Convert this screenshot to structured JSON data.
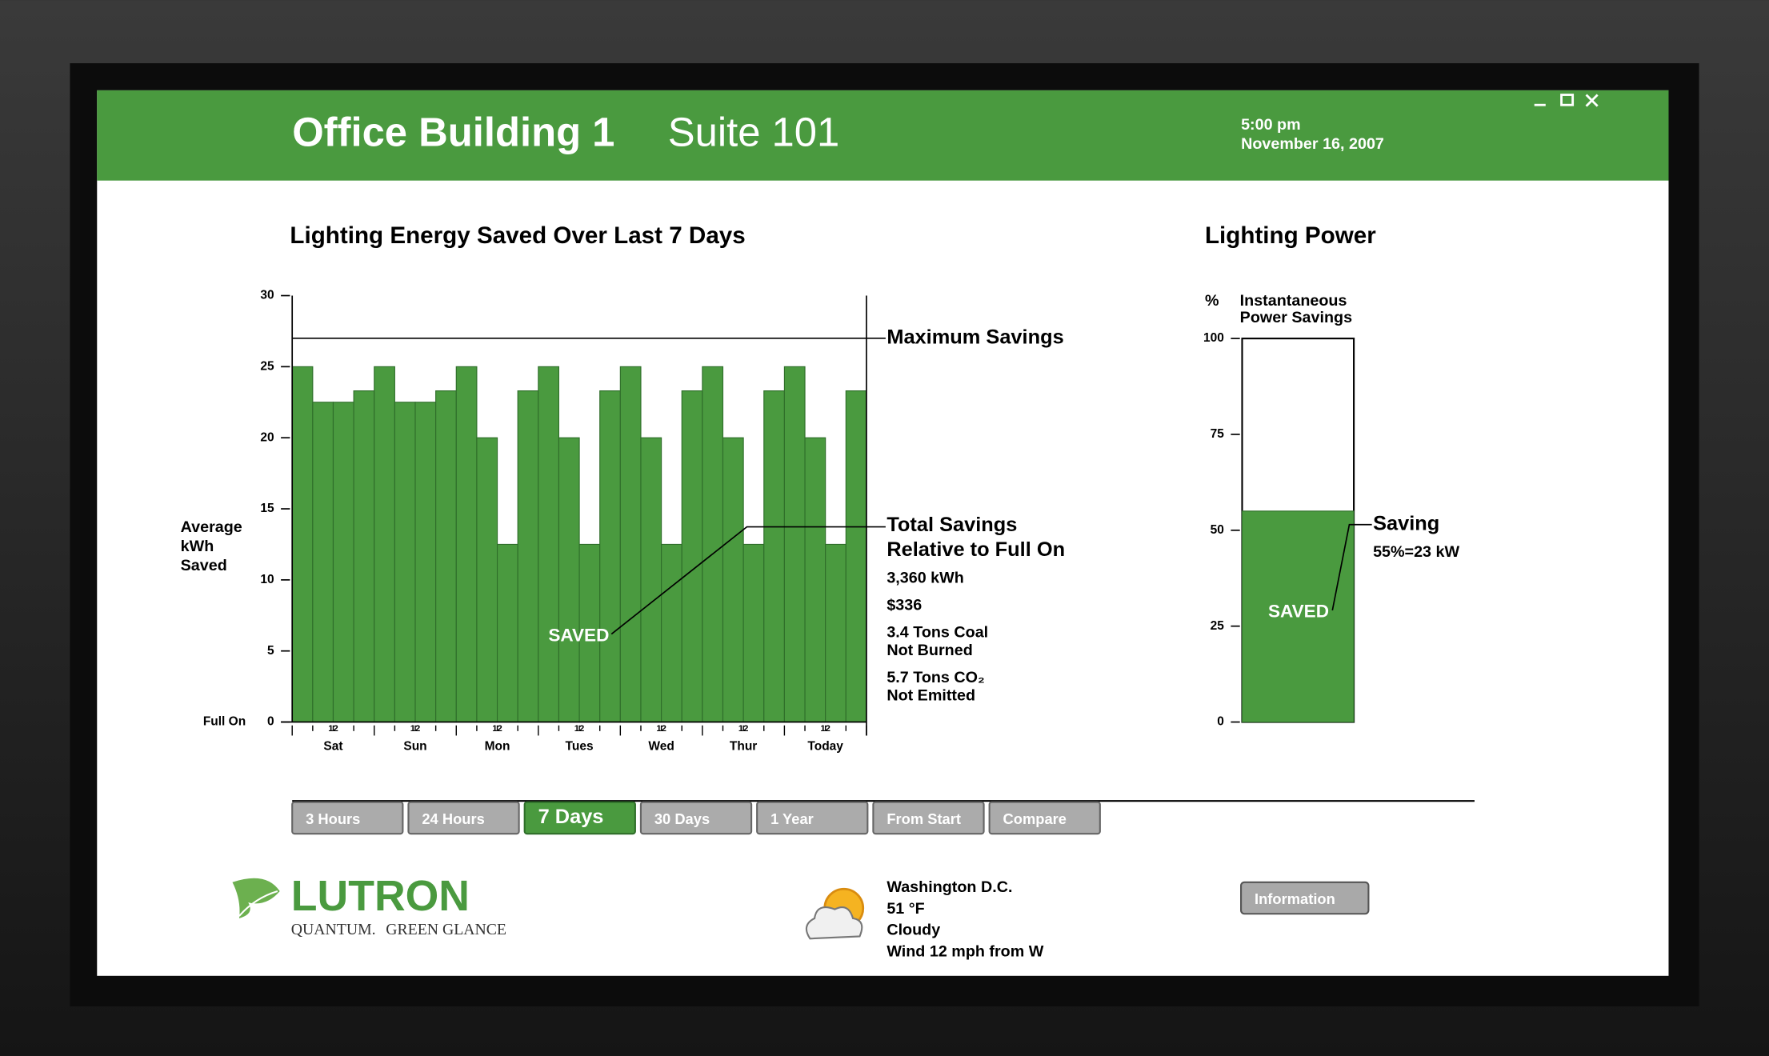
{
  "header": {
    "title": "Office Building 1",
    "subtitle": "Suite 101",
    "time": "5:00 pm",
    "date": "November 16, 2007"
  },
  "chart_data": [
    {
      "type": "bar",
      "title": "Lighting Energy Saved Over Last 7 Days",
      "y_label": [
        "Average",
        "kWh",
        "Saved"
      ],
      "categories": [
        null,
        null,
        null,
        null,
        null,
        null,
        null,
        null,
        null,
        null,
        null,
        null,
        null,
        null,
        null,
        null,
        null,
        null,
        null,
        null,
        null,
        null,
        null,
        null,
        null,
        null,
        null,
        null
      ],
      "values": [
        25,
        22.5,
        22.5,
        23.3,
        25,
        22.5,
        22.5,
        23.3,
        25,
        20,
        12.5,
        23.3,
        25,
        20,
        12.5,
        23.3,
        25,
        20,
        12.5,
        23.3,
        25,
        20,
        12.5,
        23.3,
        25,
        20,
        12.5,
        23.3
      ],
      "color": "#4a9a3f",
      "ylim": [
        0,
        30
      ],
      "yticks": [
        0,
        5,
        10,
        15,
        20,
        25,
        30
      ],
      "zero_label": "Full On",
      "day_labels": [
        "Sat",
        "Sun",
        "Mon",
        "Tues",
        "Wed",
        "Thur",
        "Today"
      ],
      "noon_label": "12",
      "max_savings": 27,
      "max_savings_label": "Maximum Savings",
      "bar_label": "SAVED",
      "totals_title": [
        "Total Savings",
        "Relative to Full On"
      ],
      "totals": [
        [
          "3,360 kWh"
        ],
        [
          "$336"
        ],
        [
          "3.4 Tons Coal",
          "Not Burned"
        ],
        [
          "5.7 Tons CO₂",
          "Not Emitted"
        ]
      ]
    },
    {
      "type": "bar",
      "title": "Lighting Power",
      "y_label": "%",
      "series_label": [
        "Instantaneous",
        "Power Savings"
      ],
      "values": [
        55
      ],
      "value_labels": [
        "55%=23 kW"
      ],
      "value_title": "Saving",
      "bar_label": "SAVED",
      "color": "#4a9a3f",
      "ylim": [
        0,
        100
      ],
      "yticks": [
        0,
        25,
        50,
        75,
        100
      ]
    }
  ],
  "tabs": {
    "items": [
      "3 Hours",
      "24 Hours",
      "7 Days",
      "30 Days",
      "1 Year",
      "From Start",
      "Compare"
    ],
    "active": 2
  },
  "logo": {
    "brand": "LUTRON",
    "line1": "QUANTUM.",
    "line2": "GREEN GLANCE"
  },
  "weather": {
    "lines": [
      "Washington D.C.",
      "51 °F",
      "Cloudy",
      "Wind 12 mph from W"
    ]
  },
  "button": "Information"
}
